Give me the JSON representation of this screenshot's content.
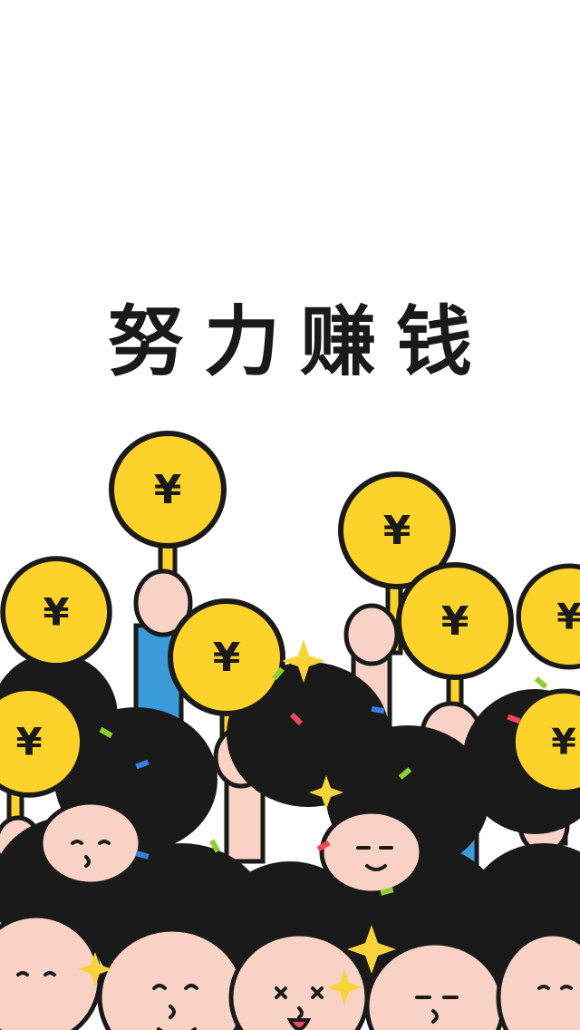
{
  "headline": "努力赚钱",
  "coin_symbol": "¥",
  "colors": {
    "background": "#ffffff",
    "coin": "#fdd22b",
    "outline": "#1a1a1a",
    "skin": "#f8d2c4",
    "hair": "#1a1a1a",
    "sleeve": "#3b9ad9",
    "confetti_green": "#8ccf2e",
    "confetti_blue": "#3580e0",
    "confetti_red": "#f0485a",
    "sparkle": "#f8d43a"
  }
}
